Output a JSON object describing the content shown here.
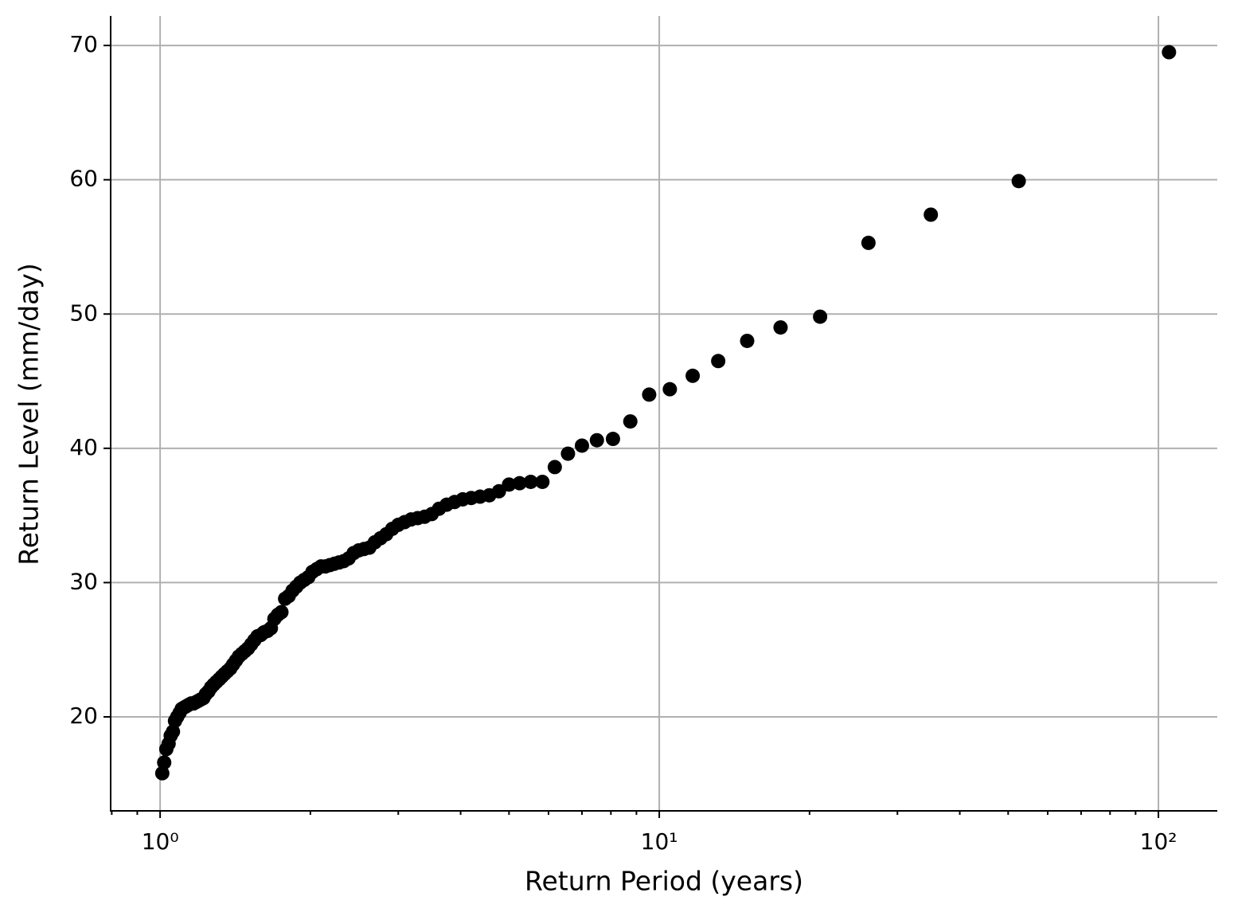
{
  "chart_data": {
    "type": "scatter",
    "xlabel": "Return Period (years)",
    "ylabel": "Return Level (mm/day)",
    "xscale": "log",
    "grid": true,
    "color": "#000000",
    "x": [
      105,
      52.5,
      35,
      26.25,
      21,
      17.5,
      15,
      13.125,
      11.667,
      10.5,
      9.545,
      8.75,
      8.077,
      7.5,
      7,
      6.563,
      6.176,
      5.833,
      5.526,
      5.25,
      5,
      4.773,
      4.565,
      4.375,
      4.2,
      4.038,
      3.889,
      3.75,
      3.621,
      3.5,
      3.387,
      3.281,
      3.182,
      3.088,
      3,
      2.917,
      2.838,
      2.763,
      2.692,
      2.625,
      2.561,
      2.5,
      2.442,
      2.386,
      2.333,
      2.283,
      2.234,
      2.188,
      2.143,
      2.1,
      2.059,
      2.019,
      1.981,
      1.944,
      1.909,
      1.875,
      1.842,
      1.81,
      1.78,
      1.75,
      1.721,
      1.694,
      1.667,
      1.641,
      1.615,
      1.591,
      1.567,
      1.544,
      1.522,
      1.5,
      1.479,
      1.458,
      1.438,
      1.419,
      1.4,
      1.382,
      1.364,
      1.346,
      1.329,
      1.313,
      1.296,
      1.28,
      1.265,
      1.25,
      1.235,
      1.221,
      1.207,
      1.193,
      1.18,
      1.167,
      1.154,
      1.141,
      1.129,
      1.117,
      1.105,
      1.094,
      1.082,
      1.071,
      1.061,
      1.05,
      1.04,
      1.029,
      1.019,
      1.01
    ],
    "values": [
      69.5,
      59.9,
      57.4,
      55.3,
      49.8,
      49.0,
      48.0,
      46.5,
      45.4,
      44.4,
      44.0,
      42.0,
      40.7,
      40.6,
      40.2,
      39.6,
      38.6,
      37.5,
      37.5,
      37.4,
      37.3,
      36.8,
      36.5,
      36.4,
      36.3,
      36.2,
      36.0,
      35.8,
      35.5,
      35.1,
      34.9,
      34.8,
      34.7,
      34.5,
      34.3,
      34.0,
      33.6,
      33.3,
      33.0,
      32.6,
      32.5,
      32.4,
      32.2,
      31.8,
      31.6,
      31.5,
      31.4,
      31.3,
      31.2,
      31.2,
      31.0,
      30.8,
      30.4,
      30.2,
      30.0,
      29.7,
      29.4,
      29.0,
      28.8,
      27.8,
      27.6,
      27.3,
      26.6,
      26.4,
      26.3,
      26.1,
      26.0,
      25.7,
      25.4,
      25.1,
      24.9,
      24.7,
      24.5,
      24.2,
      23.9,
      23.6,
      23.4,
      23.2,
      23.0,
      22.8,
      22.6,
      22.4,
      22.2,
      21.9,
      21.7,
      21.4,
      21.3,
      21.2,
      21.1,
      21.0,
      21.0,
      20.9,
      20.8,
      20.7,
      20.6,
      20.3,
      20.0,
      19.7,
      18.9,
      18.6,
      18.0,
      17.6,
      16.6,
      15.8
    ],
    "xlim": [
      0.796,
      131.2
    ],
    "ylim": [
      13.0,
      72.2
    ],
    "xticks": [
      {
        "value": 1,
        "label": "10⁰"
      },
      {
        "value": 10,
        "label": "10¹"
      },
      {
        "value": 100,
        "label": "10²"
      }
    ],
    "xminorticks": [
      0.8,
      0.9,
      2,
      3,
      4,
      5,
      6,
      7,
      8,
      9,
      20,
      30,
      40,
      50,
      60,
      70,
      80,
      90
    ],
    "yticks": [
      20,
      30,
      40,
      50,
      60,
      70
    ]
  }
}
